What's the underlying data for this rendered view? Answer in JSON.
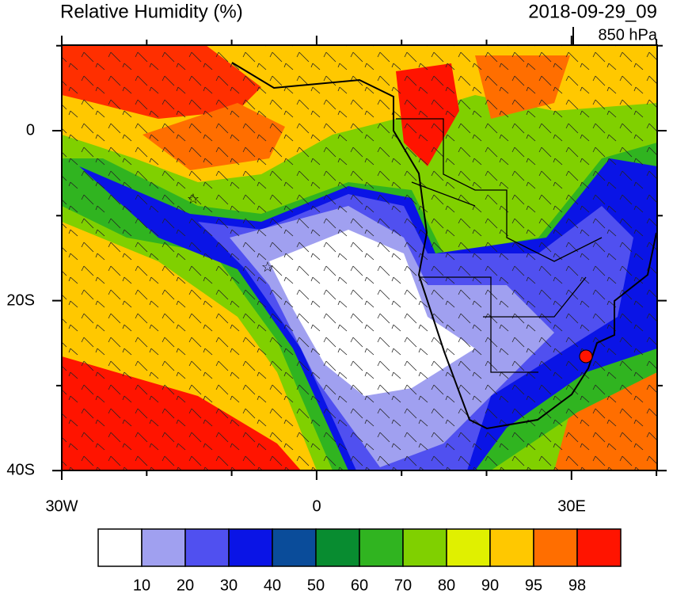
{
  "header": {
    "title": "Relative Humidity (%)",
    "valid_time": "2018-09-29_09",
    "level": "850 hPa"
  },
  "map": {
    "lat_labels": [
      "0",
      "20S",
      "40S"
    ],
    "lon_labels": [
      "30W",
      "0",
      "30E"
    ]
  },
  "colorbar": {
    "colors": [
      "#ffffff",
      "#a0a0f0",
      "#5050f0",
      "#0a14e6",
      "#0a4c9a",
      "#088c30",
      "#30b420",
      "#80d000",
      "#e0f000",
      "#ffc800",
      "#ff6e00",
      "#ff1400"
    ],
    "labels": [
      "10",
      "20",
      "30",
      "40",
      "50",
      "60",
      "70",
      "80",
      "90",
      "95",
      "98"
    ]
  }
}
